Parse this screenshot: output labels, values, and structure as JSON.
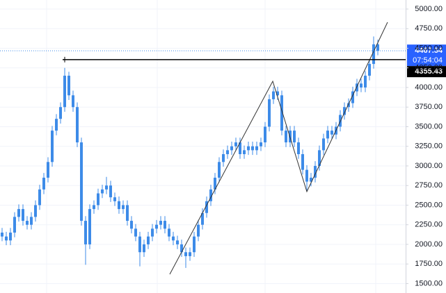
{
  "chart_data": {
    "type": "candlestick",
    "color": "#3d8be8",
    "open": [
      2150,
      2100,
      2050,
      2150,
      2350,
      2450,
      2300,
      2250,
      2350,
      2500,
      2700,
      2850,
      3050,
      3450,
      3600,
      3750,
      4150,
      3900,
      3750,
      3300,
      2300,
      2000,
      2450,
      2500,
      2650,
      2700,
      2750,
      2600,
      2550,
      2450,
      2500,
      2300,
      2200,
      2100,
      1900,
      2000,
      2100,
      2200,
      2250,
      2300,
      2200,
      2100,
      2050,
      2000,
      1900,
      1850,
      1900,
      2100,
      2250,
      2400,
      2550,
      2700,
      2850,
      3050,
      3150,
      3200,
      3250,
      3300,
      3150,
      3200,
      3250,
      3200,
      3250,
      3300,
      3500,
      3850,
      3950,
      3900,
      3450,
      3300,
      3450,
      3300,
      3150,
      2950,
      2800,
      2850,
      3000,
      3200,
      3350,
      3450,
      3400,
      3500,
      3650,
      3750,
      3800,
      3950,
      4050,
      4000,
      4150,
      4300,
      4550
    ],
    "high": [
      2210,
      2160,
      2210,
      2410,
      2510,
      2510,
      2360,
      2410,
      2560,
      2760,
      2910,
      3110,
      3510,
      3660,
      3810,
      4250,
      4200,
      3960,
      3810,
      3360,
      2360,
      2510,
      2560,
      2710,
      2760,
      2860,
      2810,
      2660,
      2610,
      2560,
      2560,
      2360,
      2260,
      2160,
      2060,
      2160,
      2260,
      2310,
      2360,
      2360,
      2260,
      2160,
      2110,
      2060,
      1960,
      1960,
      2160,
      2310,
      2460,
      2610,
      2760,
      2910,
      3110,
      3210,
      3260,
      3310,
      3360,
      3360,
      3260,
      3310,
      3310,
      3310,
      3360,
      3560,
      3910,
      4010,
      4010,
      3960,
      3510,
      3510,
      3510,
      3360,
      3210,
      3010,
      2910,
      3060,
      3260,
      3410,
      3510,
      3510,
      3560,
      3710,
      3810,
      3860,
      4010,
      4110,
      4110,
      4210,
      4360,
      4650,
      4610
    ],
    "low": [
      2040,
      1990,
      1990,
      2090,
      2290,
      2240,
      2190,
      2190,
      2290,
      2440,
      2640,
      2790,
      2990,
      3390,
      3540,
      3690,
      3840,
      3690,
      3240,
      2240,
      1740,
      1940,
      2390,
      2440,
      2590,
      2640,
      2540,
      2490,
      2390,
      2390,
      2240,
      2140,
      2040,
      1720,
      1840,
      1940,
      2040,
      2140,
      2190,
      2140,
      2040,
      1990,
      1940,
      1840,
      1700,
      1790,
      1840,
      2040,
      2190,
      2340,
      2490,
      2640,
      2790,
      2990,
      3090,
      3140,
      3190,
      3090,
      3090,
      3140,
      3140,
      3140,
      3190,
      3240,
      3440,
      3790,
      3840,
      3390,
      3240,
      3240,
      3240,
      3090,
      2890,
      2680,
      2740,
      2790,
      2940,
      3140,
      3290,
      3340,
      3340,
      3440,
      3590,
      3690,
      3740,
      3890,
      3940,
      3940,
      4090,
      4240,
      4410
    ],
    "close": [
      2100,
      2050,
      2150,
      2350,
      2450,
      2300,
      2250,
      2350,
      2500,
      2700,
      2850,
      3050,
      3450,
      3600,
      3750,
      4150,
      3900,
      3750,
      3300,
      2300,
      2000,
      2450,
      2500,
      2650,
      2700,
      2750,
      2600,
      2550,
      2450,
      2500,
      2300,
      2200,
      2100,
      1900,
      2000,
      2100,
      2200,
      2250,
      2300,
      2200,
      2100,
      2050,
      2000,
      1900,
      1850,
      1900,
      2100,
      2250,
      2400,
      2550,
      2700,
      2850,
      3050,
      3150,
      3200,
      3250,
      3300,
      3150,
      3200,
      3250,
      3200,
      3250,
      3300,
      3500,
      3850,
      3950,
      3900,
      3450,
      3300,
      3450,
      3300,
      3150,
      2950,
      2800,
      2850,
      3000,
      3200,
      3350,
      3450,
      3400,
      3500,
      3650,
      3750,
      3800,
      3950,
      4050,
      4000,
      4150,
      4300,
      4550,
      4467.34
    ],
    "ylim": [
      1380,
      5115
    ],
    "yticks": [
      {
        "value": 1500,
        "label": "1500.00"
      },
      {
        "value": 1750,
        "label": "1750.00"
      },
      {
        "value": 2000,
        "label": "2000.00"
      },
      {
        "value": 2250,
        "label": "2250.00"
      },
      {
        "value": 2500,
        "label": "2500.00"
      },
      {
        "value": 2750,
        "label": "2750.00"
      },
      {
        "value": 3000,
        "label": "3000.00"
      },
      {
        "value": 3250,
        "label": "3250.00"
      },
      {
        "value": 3500,
        "label": "3500.00"
      },
      {
        "value": 3750,
        "label": "3750.00"
      },
      {
        "value": 4000,
        "label": "4000.00"
      },
      {
        "value": 4250,
        "label": "4250.00"
      },
      {
        "value": 4500,
        "label": "4500.00"
      },
      {
        "value": 4750,
        "label": "4750.00"
      },
      {
        "value": 5000,
        "label": "5000.00"
      }
    ],
    "grid": true,
    "countdown": "07:54:04",
    "level": 4355.43
  }
}
